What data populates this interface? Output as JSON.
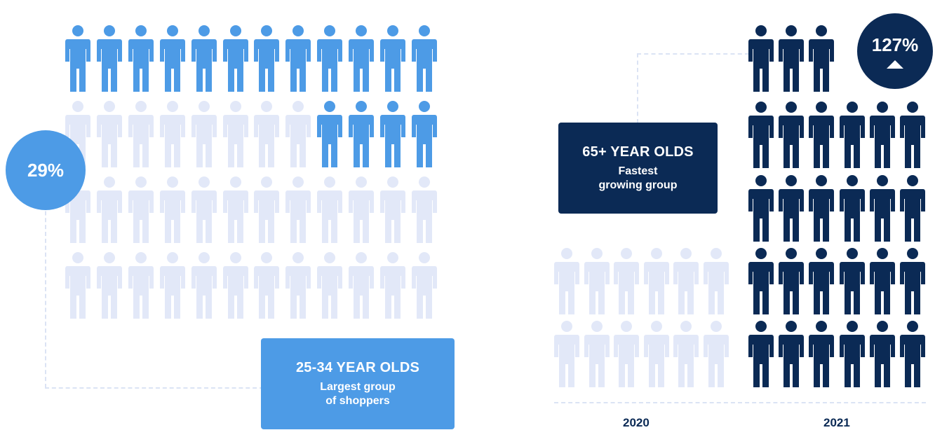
{
  "left_panel": {
    "badge": {
      "value": "29%",
      "color": "#4d9be6"
    },
    "card": {
      "heading": "25-34 YEAR OLDS",
      "subtitle_line1": "Largest group",
      "subtitle_line2": "of shoppers",
      "color": "#4d9be6"
    },
    "grid": {
      "rows": 4,
      "cols": 12,
      "highlighted_count": 16,
      "highlight_color": "#4d9be6",
      "muted_color": "#e2e8f8"
    }
  },
  "right_panel": {
    "badge": {
      "value": "127%",
      "arrow": "up-triangle-icon",
      "color": "#0b2a55"
    },
    "card": {
      "heading": "65+ YEAR OLDS",
      "subtitle_line1": "Fastest",
      "subtitle_line2": "growing group",
      "color": "#0b2a55"
    },
    "groups": [
      {
        "year": "2020",
        "rows": 2,
        "cols": 6,
        "color": "#e2e8f8"
      },
      {
        "year": "2021",
        "rows": 5,
        "cols": 6,
        "top_row_cols": 3,
        "color": "#0b2a55"
      }
    ]
  }
}
